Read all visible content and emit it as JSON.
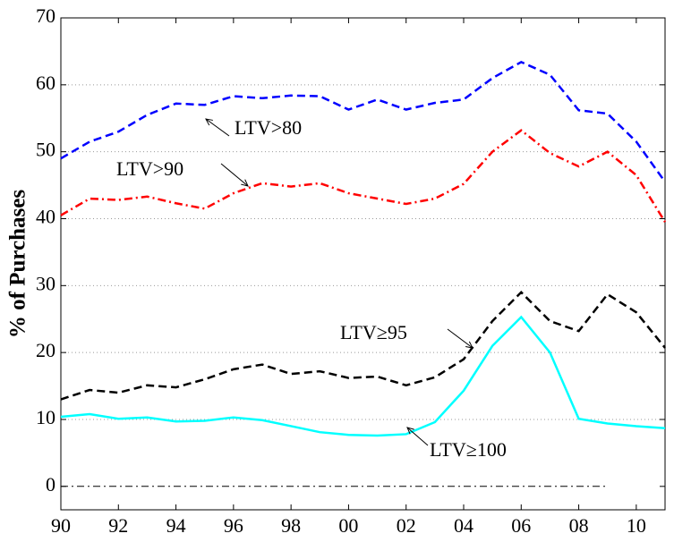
{
  "chart_data": {
    "type": "line",
    "ylabel": "% of Purchases",
    "x": [
      1990,
      1991,
      1992,
      1993,
      1994,
      1995,
      1996,
      1997,
      1998,
      1999,
      2000,
      2001,
      2002,
      2003,
      2004,
      2005,
      2006,
      2007,
      2008,
      2009,
      2010,
      2011
    ],
    "xlim": [
      1990,
      2011
    ],
    "xticks": [
      {
        "value": 1990,
        "label": "90"
      },
      {
        "value": 1992,
        "label": "92"
      },
      {
        "value": 1994,
        "label": "94"
      },
      {
        "value": 1996,
        "label": "96"
      },
      {
        "value": 1998,
        "label": "98"
      },
      {
        "value": 2000,
        "label": "00"
      },
      {
        "value": 2002,
        "label": "02"
      },
      {
        "value": 2004,
        "label": "04"
      },
      {
        "value": 2006,
        "label": "06"
      },
      {
        "value": 2008,
        "label": "08"
      },
      {
        "value": 2010,
        "label": "10"
      }
    ],
    "ylim": [
      -3.5,
      70
    ],
    "yticks": [
      0,
      10,
      20,
      30,
      40,
      50,
      60,
      70
    ],
    "grid": true,
    "reference_line": 0,
    "series": [
      {
        "name": "LTV>80",
        "color": "#0000ff",
        "style": "dashed",
        "values": [
          49,
          51.5,
          53,
          55.5,
          57.2,
          57,
          58.3,
          58,
          58.4,
          58.3,
          56.3,
          57.8,
          56.3,
          57.3,
          57.8,
          61,
          63.4,
          61.5,
          56.2,
          55.7,
          51.5,
          45.5
        ]
      },
      {
        "name": "LTV>90",
        "color": "#ff0000",
        "style": "dashdot",
        "values": [
          40.5,
          43,
          42.8,
          43.3,
          42.3,
          41.5,
          43.8,
          45.3,
          44.8,
          45.3,
          43.8,
          43,
          42.2,
          43,
          45.2,
          50,
          53.2,
          49.8,
          47.8,
          50,
          46.5,
          39.5
        ]
      },
      {
        "name": "LTV≥95",
        "color": "#000000",
        "style": "dashed",
        "values": [
          13,
          14.4,
          14,
          15.1,
          14.8,
          16,
          17.5,
          18.2,
          16.8,
          17.2,
          16.2,
          16.4,
          15.1,
          16.3,
          19,
          24.7,
          29,
          24.7,
          23.2,
          28.7,
          26,
          20.7
        ]
      },
      {
        "name": "LTV≥100",
        "color": "#00ffff",
        "style": "solid",
        "values": [
          10.4,
          10.8,
          10.1,
          10.3,
          9.7,
          9.8,
          10.3,
          9.9,
          9,
          8.1,
          7.7,
          7.6,
          7.8,
          9.6,
          14.3,
          21,
          25.3,
          20,
          10.1,
          9.4,
          9,
          8.7
        ]
      }
    ]
  }
}
